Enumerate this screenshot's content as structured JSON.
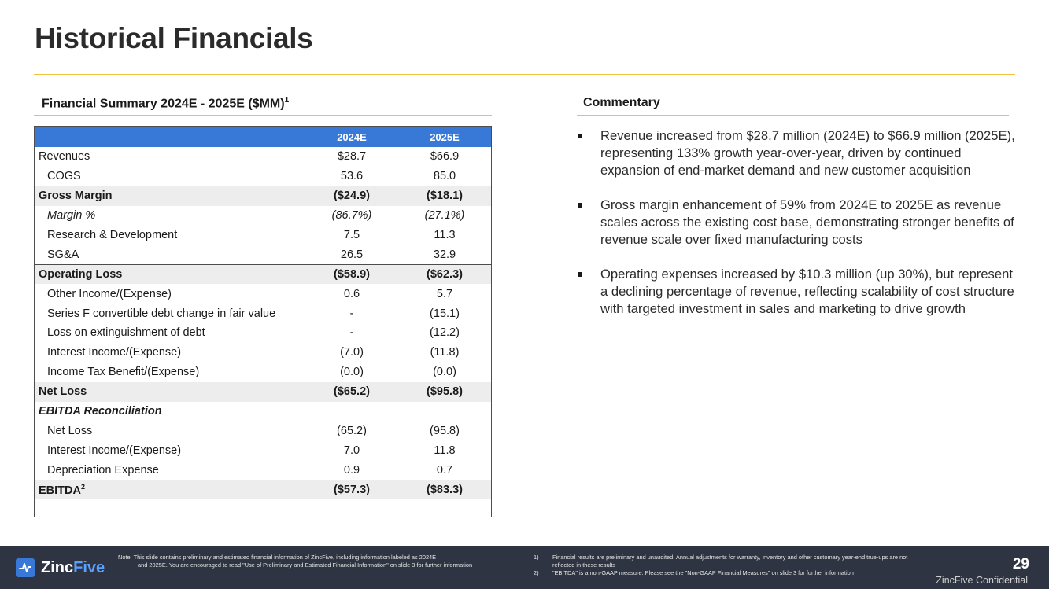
{
  "title": "Historical Financials",
  "summary": {
    "heading": "Financial Summary 2024E - 2025E ($MM)",
    "heading_sup": "1",
    "columns": [
      "2024E",
      "2025E"
    ],
    "rows": [
      {
        "label": "Revenues",
        "v1": "$28.7",
        "v2": "$66.9"
      },
      {
        "label": "COGS",
        "v1": "53.6",
        "v2": "85.0"
      },
      {
        "label": "Gross Margin",
        "v1": "($24.9)",
        "v2": "($18.1)"
      },
      {
        "label": "Margin %",
        "v1": "(86.7%)",
        "v2": "(27.1%)"
      },
      {
        "label": "Research & Development",
        "v1": "7.5",
        "v2": "11.3"
      },
      {
        "label": "SG&A",
        "v1": "26.5",
        "v2": "32.9"
      },
      {
        "label": "Operating Loss",
        "v1": "($58.9)",
        "v2": "($62.3)"
      },
      {
        "label": "Other Income/(Expense)",
        "v1": "0.6",
        "v2": "5.7"
      },
      {
        "label": "Series F convertible debt change in fair value",
        "v1": "-",
        "v2": "(15.1)"
      },
      {
        "label": "Loss on extinguishment of debt",
        "v1": "-",
        "v2": "(12.2)"
      },
      {
        "label": "Interest Income/(Expense)",
        "v1": "(7.0)",
        "v2": "(11.8)"
      },
      {
        "label": "Income Tax Benefit/(Expense)",
        "v1": "(0.0)",
        "v2": "(0.0)"
      },
      {
        "label": "Net Loss",
        "v1": "($65.2)",
        "v2": "($95.8)"
      },
      {
        "label": "EBITDA Reconciliation",
        "v1": "",
        "v2": ""
      },
      {
        "label": "Net Loss",
        "v1": "(65.2)",
        "v2": "(95.8)"
      },
      {
        "label": "Interest Income/(Expense)",
        "v1": "7.0",
        "v2": "11.8"
      },
      {
        "label": "Depreciation Expense",
        "v1": "0.9",
        "v2": "0.7"
      },
      {
        "label": "EBITDA",
        "label_sup": "2",
        "v1": "($57.3)",
        "v2": "($83.3)"
      }
    ]
  },
  "commentary": {
    "heading": "Commentary",
    "bullets": [
      "Revenue increased from $28.7 million (2024E) to $66.9 million (2025E), representing 133% growth year-over-year, driven by continued expansion of end-market demand and new customer acquisition",
      "Gross margin enhancement of 59% from 2024E to 2025E as revenue scales across the existing cost base, demonstrating stronger benefits of revenue scale over fixed manufacturing costs",
      "Operating expenses increased by $10.3 million (up 30%), but represent a declining percentage of revenue, reflecting scalability of cost structure with targeted investment in sales and marketing to drive growth"
    ]
  },
  "footer": {
    "logo_part1": "Zinc",
    "logo_part2": "Five",
    "note_line1": "Note: This slide contains preliminary and estimated financial information of ZincFive, including information labeled as 2024E",
    "note_line2": "and 2025E. You are encouraged to read \"Use of Preliminary and Estimated Financial Information\" on slide 3 for further information",
    "footnotes": [
      {
        "num": "1)",
        "text": "Financial results are preliminary and unaudited. Annual adjustments for warranty, inventory and other customary year-end true-ups are not reflected in these results"
      },
      {
        "num": "2)",
        "text": "\"EBITDA\" is a non-GAAP measure. Please see the \"Non-GAAP Financial Measures\" on slide 3 for further information"
      }
    ],
    "page_number": "29",
    "confidential": "ZincFive Confidential"
  },
  "colors": {
    "accent_rule": "#f2c23f",
    "table_header": "#3878d6",
    "footer_bg": "#2e3442"
  }
}
